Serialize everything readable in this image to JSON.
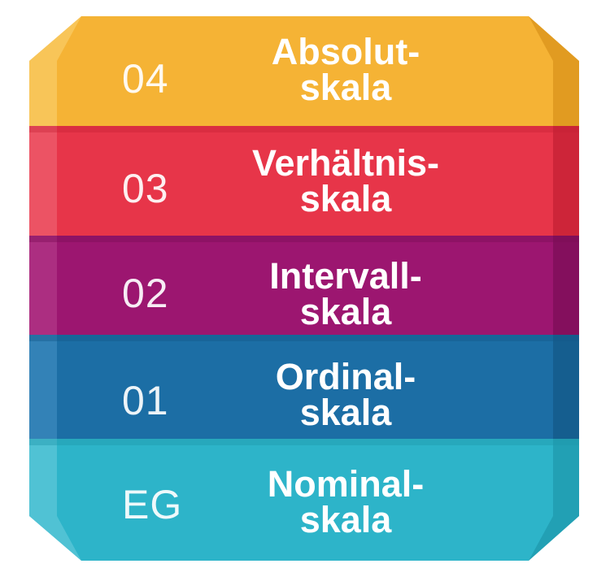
{
  "levels": [
    {
      "number": "04",
      "line1": "Absolut-",
      "line2": "skala",
      "color": "#f5b335",
      "dark": "#d9921a",
      "light": "#f9c961"
    },
    {
      "number": "03",
      "line1": "Verhältnis-",
      "line2": "skala",
      "color": "#e73549",
      "dark": "#c21f33",
      "light": "#ee5b6b"
    },
    {
      "number": "02",
      "line1": "Intervall-",
      "line2": "skala",
      "color": "#9c1670",
      "dark": "#7a0d56",
      "light": "#b03486"
    },
    {
      "number": "01",
      "line1": "Ordinal-",
      "line2": "skala",
      "color": "#1c6ea5",
      "dark": "#135786",
      "light": "#3a87bb"
    },
    {
      "number": "EG",
      "line1": "Nominal-",
      "line2": "skala",
      "color": "#2db4c9",
      "dark": "#1e97ab",
      "light": "#59c6d7"
    }
  ]
}
